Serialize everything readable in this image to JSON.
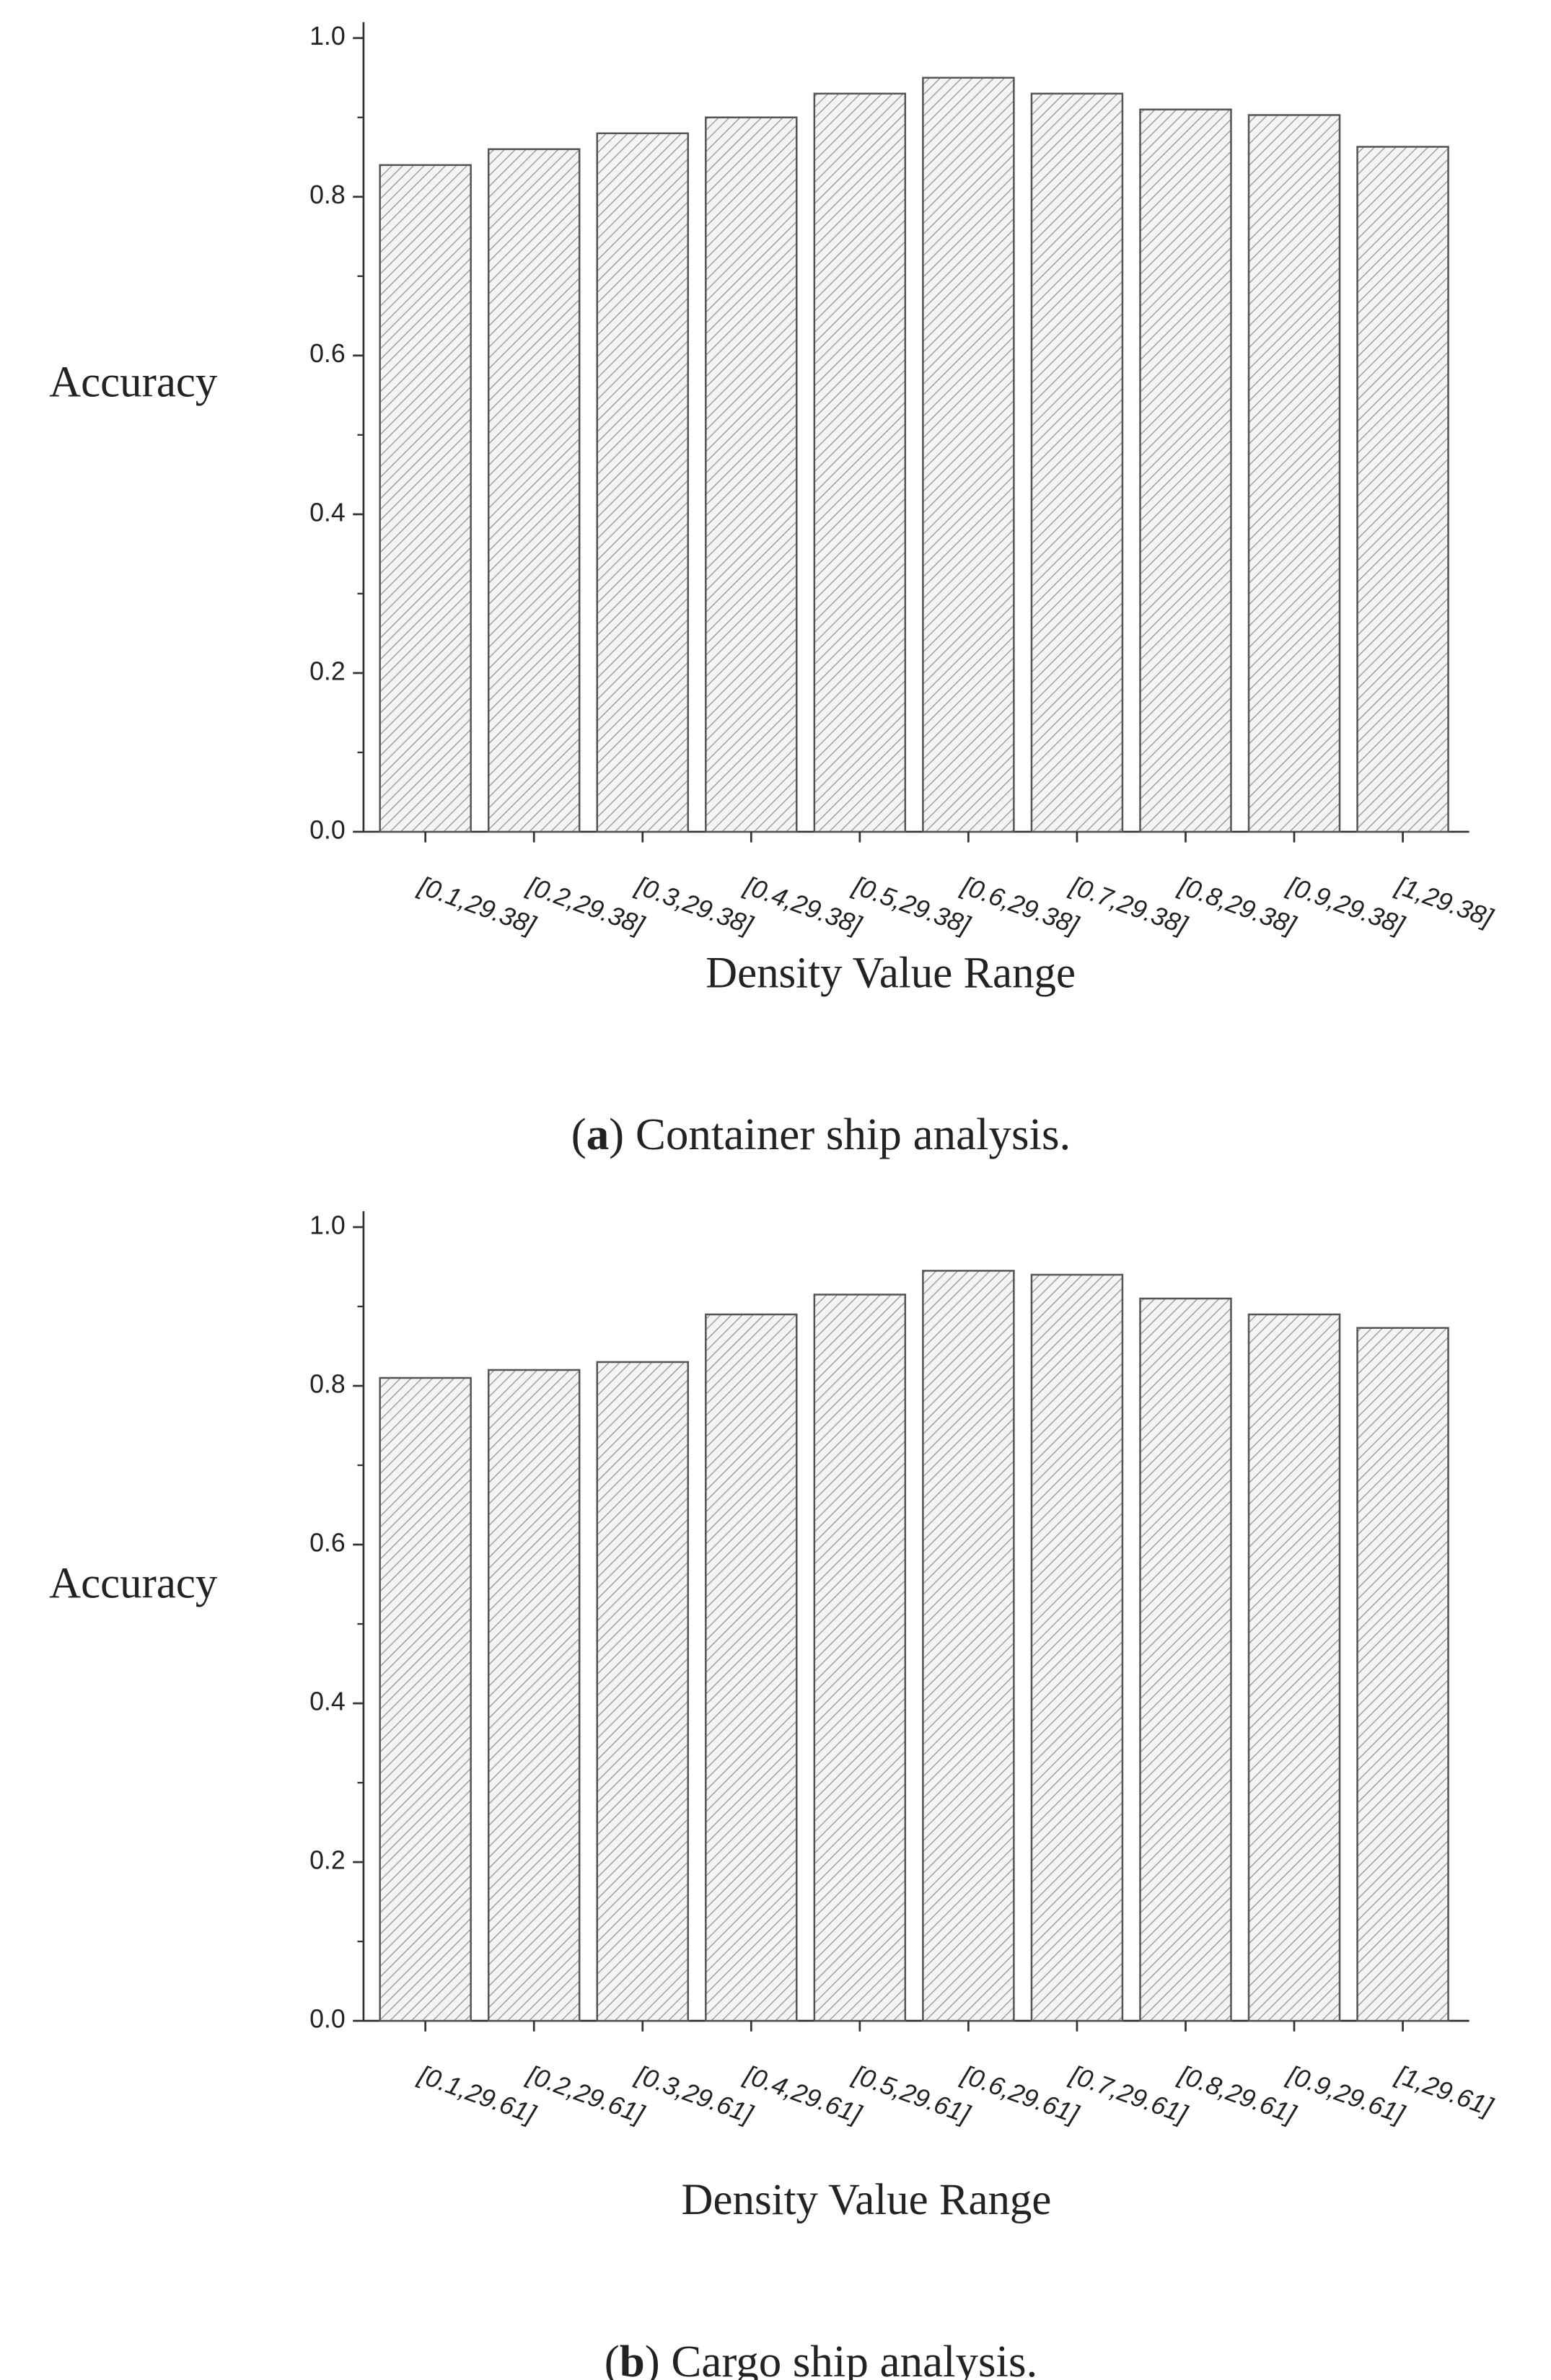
{
  "charts": [
    {
      "chart_data": {
        "type": "bar",
        "y_label": "Accuracy",
        "x_label": "Density Value Range",
        "categories": [
          "[0.1,29.38]",
          "[0.2,29.38]",
          "[0.3,29.38]",
          "[0.4,29.38]",
          "[0.5,29.38]",
          "[0.6,29.38]",
          "[0.7,29.38]",
          "[0.8,29.38]",
          "[0.9,29.38]",
          "[1,29.38]"
        ],
        "values": [
          0.84,
          0.86,
          0.88,
          0.9,
          0.93,
          0.95,
          0.93,
          0.91,
          0.903,
          0.863
        ],
        "color": "#8a8a8a",
        "ylim": [
          0,
          1.02
        ],
        "yticks": [
          {
            "value": 0,
            "label": "0.0"
          },
          0.2,
          0.4,
          0.6,
          0.8,
          {
            "value": 1,
            "label": "1.0"
          }
        ],
        "yminorticks": [
          0.1,
          0.3,
          0.5,
          0.7,
          0.9
        ]
      },
      "caption": {
        "open": "(",
        "label": "a",
        "text": ") Container ship analysis."
      }
    },
    {
      "chart_data": {
        "type": "bar",
        "y_label": "Accuracy",
        "x_label": "Density Value Range",
        "categories": [
          "[0.1,29.61]",
          "[0.2,29.61]",
          "[0.3,29.61]",
          "[0.4,29.61]",
          "[0.5,29.61]",
          "[0.6,29.61]",
          "[0.7,29.61]",
          "[0.8,29.61]",
          "[0.9,29.61]",
          "[1,29.61]"
        ],
        "values": [
          0.81,
          0.82,
          0.83,
          0.89,
          0.915,
          0.945,
          0.94,
          0.91,
          0.89,
          0.873
        ],
        "color": "#8a8a8a",
        "ylim": [
          0,
          1.02
        ],
        "yticks": [
          {
            "value": 0,
            "label": "0.0"
          },
          0.2,
          0.4,
          0.6,
          0.8,
          {
            "value": 1,
            "label": "1.0"
          }
        ],
        "yminorticks": [
          0.1,
          0.3,
          0.5,
          0.7,
          0.9
        ]
      },
      "caption": {
        "open": "(",
        "label": "b",
        "text": ") Cargo ship analysis."
      }
    }
  ]
}
